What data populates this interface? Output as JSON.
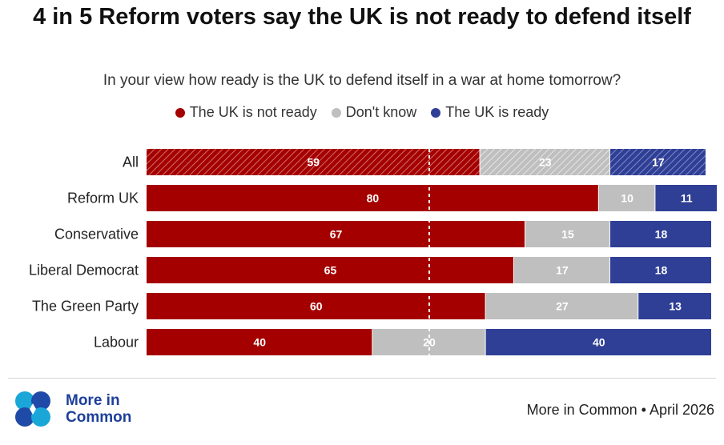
{
  "title": "4 in 5 Reform voters say the UK is not ready to defend itself",
  "subtitle": "In your view how ready is the UK to defend itself in a war at home tomorrow?",
  "colors": {
    "not_ready": "#a50000",
    "dont_know": "#bfbfbf",
    "ready": "#2f3f96"
  },
  "chart_data": {
    "type": "bar",
    "orientation": "horizontal-stacked-100",
    "categories": [
      "All",
      "Reform UK",
      "Conservative",
      "Liberal Democrat",
      "The Green Party",
      "Labour"
    ],
    "series": [
      {
        "name": "The UK is not ready",
        "values": [
          59,
          80,
          67,
          65,
          60,
          40
        ]
      },
      {
        "name": "Don't know",
        "values": [
          23,
          10,
          15,
          17,
          27,
          20
        ]
      },
      {
        "name": "The UK is ready",
        "values": [
          17,
          11,
          18,
          18,
          13,
          40
        ]
      }
    ],
    "hatched_categories": [
      "All"
    ],
    "reference_line": 50,
    "legend_position": "top",
    "xlim": [
      0,
      100
    ]
  },
  "legend": [
    {
      "label": "The UK is not ready",
      "color": "#a50000"
    },
    {
      "label": "Don't know",
      "color": "#bfbfbf"
    },
    {
      "label": "The UK is ready",
      "color": "#2f3f96"
    }
  ],
  "brand": {
    "name": "More in Common",
    "logo_icon": "four-petal-logo-icon"
  },
  "source": "More in Common • April 2026"
}
